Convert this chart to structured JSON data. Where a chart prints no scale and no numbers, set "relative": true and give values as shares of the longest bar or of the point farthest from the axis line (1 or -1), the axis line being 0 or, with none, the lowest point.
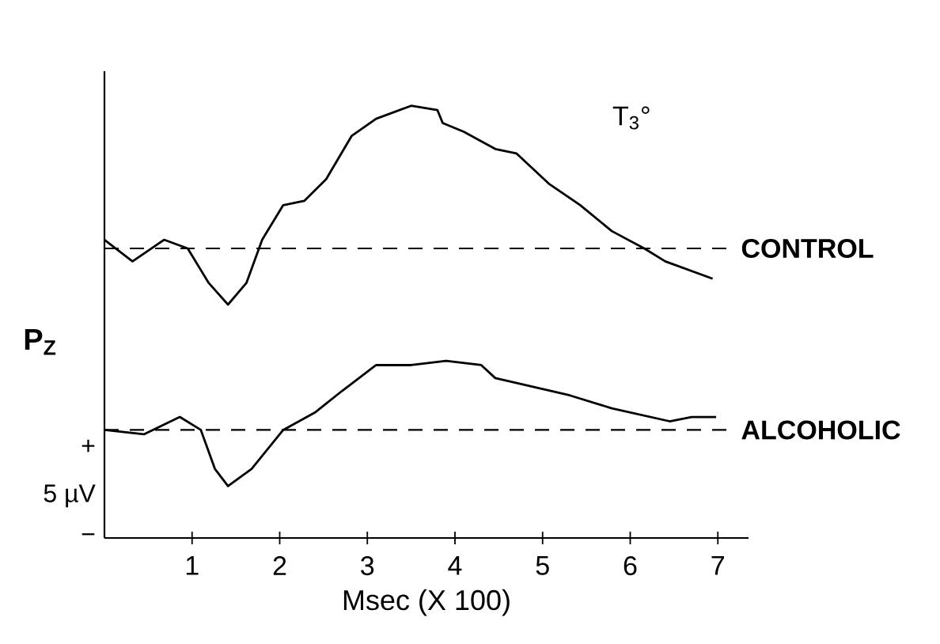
{
  "chart_data": {
    "type": "line",
    "relative": true,
    "xlabel": "Msec (X 100)",
    "ylabel": "P$_{Z}$",
    "xlim": [
      0,
      7.35
    ],
    "xticks": [
      1,
      2,
      3,
      4,
      5,
      6,
      7
    ],
    "annotations": [
      "T$_{3}$°",
      "+",
      "5 µV",
      "−"
    ],
    "series": [
      {
        "color": "#000000",
        "x": [
          0.0,
          0.32,
          0.68,
          0.95,
          1.19,
          1.41,
          1.62,
          1.8,
          2.04,
          2.28,
          2.53,
          2.82,
          3.1,
          3.5,
          3.8,
          3.86,
          4.1,
          4.46,
          4.7,
          5.07,
          5.43,
          5.79,
          6.16,
          6.4,
          6.94
        ],
        "values": [
          0.69,
          0.64,
          0.69,
          0.67,
          0.59,
          0.54,
          0.59,
          0.69,
          0.77,
          0.78,
          0.83,
          0.93,
          0.97,
          1.0,
          0.99,
          0.96,
          0.94,
          0.9,
          0.89,
          0.82,
          0.77,
          0.71,
          0.67,
          0.64,
          0.6
        ]
      },
      {
        "color": "#000000",
        "x": [
          0.0,
          0.45,
          0.86,
          1.1,
          1.26,
          1.41,
          1.68,
          2.04,
          2.4,
          2.71,
          3.1,
          3.5,
          3.9,
          4.3,
          4.46,
          4.89,
          5.31,
          5.79,
          6.45,
          6.7,
          6.98
        ],
        "values": [
          0.25,
          0.24,
          0.28,
          0.25,
          0.16,
          0.12,
          0.16,
          0.25,
          0.29,
          0.34,
          0.4,
          0.4,
          0.41,
          0.4,
          0.37,
          0.35,
          0.33,
          0.3,
          0.27,
          0.28,
          0.28
        ]
      }
    ],
    "ref_lines": [
      {
        "axis": "y",
        "value": 0.67,
        "label": "CONTROL",
        "line_style": "dashed"
      },
      {
        "axis": "y",
        "value": 0.25,
        "label": "ALCOHOLIC",
        "line_style": "dashed"
      }
    ],
    "line_style": "solid",
    "marker": "none"
  }
}
